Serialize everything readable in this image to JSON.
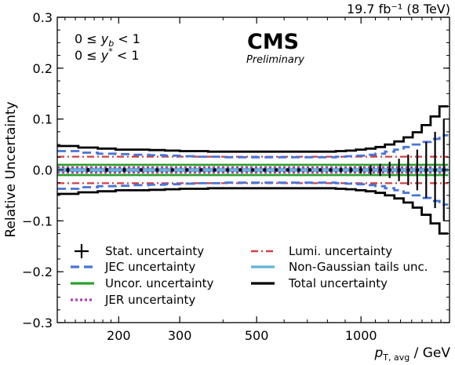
{
  "chart_data": {
    "type": "line",
    "title": "",
    "lumi_label": "19.7 fb⁻¹ (8 TeV)",
    "experiment": "CMS",
    "status": "Preliminary",
    "region_labels": [
      "0 ≤ y_b < 1",
      "0 ≤ y* < 1"
    ],
    "xlabel": "p_T,avg / GeV",
    "ylabel": "Relative Uncertainty",
    "xscale": "log",
    "xlim": [
      133,
      1800
    ],
    "ylim": [
      -0.3,
      0.3
    ],
    "xticks": [
      200,
      300,
      500,
      1000
    ],
    "xtick_labels": [
      "200",
      "300",
      "500",
      "1000"
    ],
    "yticks": [
      -0.3,
      -0.2,
      -0.1,
      0.0,
      0.1,
      0.2,
      0.3
    ],
    "ytick_labels": [
      "−0.3",
      "−0.2",
      "−0.1",
      "0.0",
      "0.1",
      "0.2",
      "0.3"
    ],
    "grid": false,
    "legend_position": "bottom",
    "bin_edges": [
      133,
      153,
      174,
      196,
      220,
      245,
      272,
      300,
      330,
      362,
      395,
      430,
      468,
      507,
      548,
      592,
      638,
      686,
      737,
      790,
      846,
      905,
      967,
      1032,
      1101,
      1172,
      1248,
      1327,
      1410,
      1497,
      1588,
      1684,
      1784
    ],
    "series": [
      {
        "name": "Stat. uncertainty",
        "color": "#000000",
        "style": "errorbar",
        "values": [
          0.004,
          0.004,
          0.004,
          0.004,
          0.003,
          0.003,
          0.003,
          0.003,
          0.003,
          0.003,
          0.003,
          0.003,
          0.003,
          0.003,
          0.003,
          0.003,
          0.003,
          0.003,
          0.003,
          0.003,
          0.004,
          0.005,
          0.007,
          0.009,
          0.012,
          0.016,
          0.022,
          0.03,
          0.04,
          0.055,
          0.075,
          0.1
        ]
      },
      {
        "name": "JEC uncertainty",
        "color": "#4a74d9",
        "style": "dashed",
        "values": [
          0.037,
          0.034,
          0.032,
          0.031,
          0.03,
          0.029,
          0.028,
          0.027,
          0.026,
          0.026,
          0.025,
          0.025,
          0.025,
          0.025,
          0.025,
          0.025,
          0.025,
          0.025,
          0.025,
          0.025,
          0.026,
          0.027,
          0.028,
          0.03,
          0.032,
          0.036,
          0.04,
          0.045,
          0.05,
          0.055,
          0.061,
          0.068
        ]
      },
      {
        "name": "Uncor. uncertainty",
        "color": "#2ca02c",
        "style": "solid",
        "values": [
          0.01,
          0.01,
          0.01,
          0.01,
          0.01,
          0.01,
          0.01,
          0.01,
          0.01,
          0.01,
          0.01,
          0.01,
          0.01,
          0.01,
          0.01,
          0.01,
          0.01,
          0.01,
          0.01,
          0.01,
          0.01,
          0.01,
          0.01,
          0.01,
          0.01,
          0.01,
          0.01,
          0.01,
          0.01,
          0.01,
          0.01,
          0.01
        ]
      },
      {
        "name": "JER uncertainty",
        "color": "#b040b0",
        "style": "dotted",
        "values": [
          0.005,
          0.005,
          0.005,
          0.005,
          0.005,
          0.005,
          0.005,
          0.005,
          0.005,
          0.005,
          0.005,
          0.005,
          0.005,
          0.005,
          0.005,
          0.005,
          0.005,
          0.005,
          0.005,
          0.005,
          0.005,
          0.005,
          0.005,
          0.005,
          0.005,
          0.005,
          0.005,
          0.005,
          0.005,
          0.005,
          0.005,
          0.005
        ]
      },
      {
        "name": "Lumi. uncertainty",
        "color": "#d04040",
        "style": "dashdot",
        "values": [
          0.026,
          0.026,
          0.026,
          0.026,
          0.026,
          0.026,
          0.026,
          0.026,
          0.026,
          0.026,
          0.026,
          0.026,
          0.026,
          0.026,
          0.026,
          0.026,
          0.026,
          0.026,
          0.026,
          0.026,
          0.026,
          0.026,
          0.026,
          0.026,
          0.026,
          0.026,
          0.026,
          0.026,
          0.026,
          0.026,
          0.026,
          0.026
        ]
      },
      {
        "name": "Non-Gaussian tails unc.",
        "color": "#5fb4d8",
        "style": "solid",
        "values": [
          0.002,
          0.002,
          0.002,
          0.002,
          0.002,
          0.002,
          0.002,
          0.002,
          0.002,
          0.002,
          0.002,
          0.002,
          0.002,
          0.002,
          0.002,
          0.002,
          0.002,
          0.002,
          0.002,
          0.002,
          0.002,
          0.002,
          0.002,
          0.002,
          0.002,
          0.002,
          0.002,
          0.002,
          0.002,
          0.002,
          0.002,
          0.002
        ]
      },
      {
        "name": "Total uncertainty",
        "color": "#000000",
        "style": "solid-thick",
        "values": [
          0.047,
          0.044,
          0.042,
          0.04,
          0.04,
          0.039,
          0.038,
          0.037,
          0.037,
          0.036,
          0.036,
          0.036,
          0.036,
          0.036,
          0.036,
          0.036,
          0.036,
          0.036,
          0.036,
          0.036,
          0.037,
          0.038,
          0.04,
          0.042,
          0.045,
          0.05,
          0.056,
          0.064,
          0.074,
          0.088,
          0.105,
          0.125
        ]
      }
    ]
  }
}
